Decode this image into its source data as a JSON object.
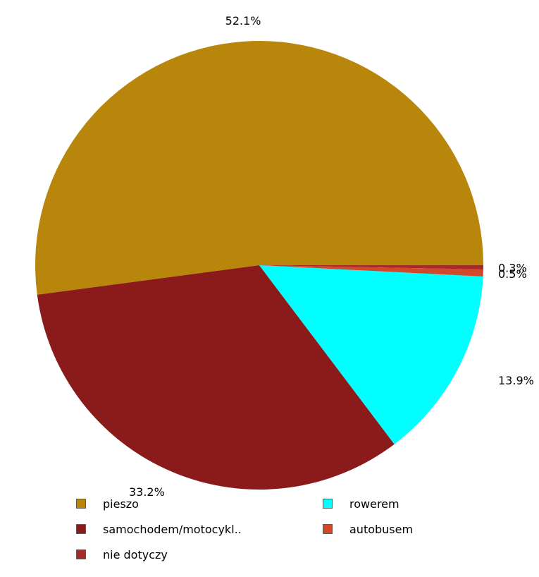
{
  "chart_data": {
    "type": "pie",
    "title": "",
    "slices": [
      {
        "name": "pieszo",
        "value": 52.1,
        "label": "52.1%",
        "color": "#b8860b"
      },
      {
        "name": "samochodem/motocykl..",
        "value": 33.2,
        "label": "33.2%",
        "color": "#8b1a1a"
      },
      {
        "name": "rowerem",
        "value": 13.9,
        "label": "13.9%",
        "color": "#00ffff"
      },
      {
        "name": "autobusem",
        "value": 0.5,
        "label": "0.5%",
        "color": "#d2492a"
      },
      {
        "name": "nie dotyczy",
        "value": 0.3,
        "label": "0.3%",
        "color": "#a52a2a"
      }
    ],
    "legend_position": "bottom",
    "legend": [
      {
        "label": "pieszo",
        "color": "#b8860b"
      },
      {
        "label": "rowerem",
        "color": "#00ffff"
      },
      {
        "label": "samochodem/motocykl..",
        "color": "#8b1a1a"
      },
      {
        "label": "autobusem",
        "color": "#d2492a"
      },
      {
        "label": "nie dotyczy",
        "color": "#a52a2a"
      }
    ]
  }
}
